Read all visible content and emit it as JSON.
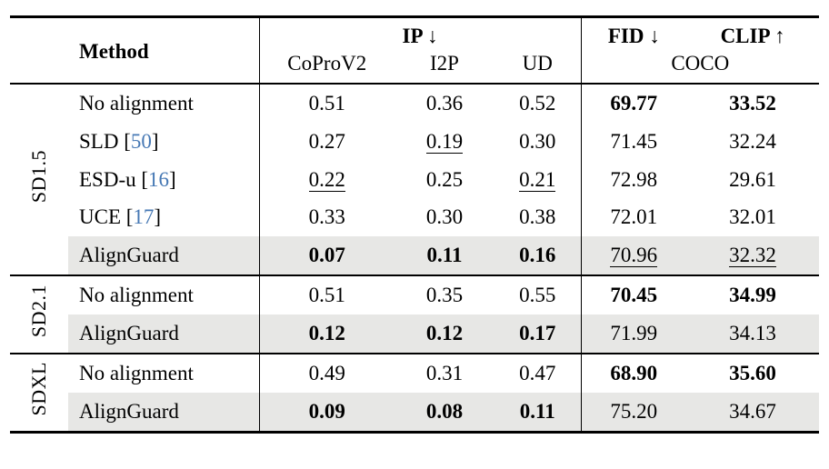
{
  "table": {
    "header": {
      "method": "Method",
      "ip": "IP ↓",
      "ip_cols": [
        "CoProV2",
        "I2P",
        "UD"
      ],
      "fid": "FID ↓",
      "clip": "CLIP ↑",
      "coco": "COCO"
    },
    "highlight_color": "#e7e7e5",
    "cite_color": "#4678b4",
    "groups": [
      {
        "label": "SD1.5",
        "rows": [
          {
            "method": "No alignment",
            "cite": null,
            "highlight": false,
            "cells": [
              {
                "v": "0.51"
              },
              {
                "v": "0.36"
              },
              {
                "v": "0.52"
              },
              {
                "v": "69.77",
                "b": true
              },
              {
                "v": "33.52",
                "b": true
              }
            ]
          },
          {
            "method": "SLD",
            "cite": "50",
            "highlight": false,
            "cells": [
              {
                "v": "0.27"
              },
              {
                "v": "0.19",
                "u": true
              },
              {
                "v": "0.30"
              },
              {
                "v": "71.45"
              },
              {
                "v": "32.24"
              }
            ]
          },
          {
            "method": "ESD-u",
            "cite": "16",
            "highlight": false,
            "cells": [
              {
                "v": "0.22",
                "u": true
              },
              {
                "v": "0.25"
              },
              {
                "v": "0.21",
                "u": true
              },
              {
                "v": "72.98"
              },
              {
                "v": "29.61"
              }
            ]
          },
          {
            "method": "UCE",
            "cite": "17",
            "highlight": false,
            "cells": [
              {
                "v": "0.33"
              },
              {
                "v": "0.30"
              },
              {
                "v": "0.38"
              },
              {
                "v": "72.01"
              },
              {
                "v": "32.01"
              }
            ]
          },
          {
            "method": "AlignGuard",
            "cite": null,
            "highlight": true,
            "cells": [
              {
                "v": "0.07",
                "b": true
              },
              {
                "v": "0.11",
                "b": true
              },
              {
                "v": "0.16",
                "b": true
              },
              {
                "v": "70.96",
                "u": true
              },
              {
                "v": "32.32",
                "u": true
              }
            ]
          }
        ]
      },
      {
        "label": "SD2.1",
        "rows": [
          {
            "method": "No alignment",
            "cite": null,
            "highlight": false,
            "cells": [
              {
                "v": "0.51"
              },
              {
                "v": "0.35"
              },
              {
                "v": "0.55"
              },
              {
                "v": "70.45",
                "b": true
              },
              {
                "v": "34.99",
                "b": true
              }
            ]
          },
          {
            "method": "AlignGuard",
            "cite": null,
            "highlight": true,
            "cells": [
              {
                "v": "0.12",
                "b": true
              },
              {
                "v": "0.12",
                "b": true
              },
              {
                "v": "0.17",
                "b": true
              },
              {
                "v": "71.99"
              },
              {
                "v": "34.13"
              }
            ]
          }
        ]
      },
      {
        "label": "SDXL",
        "rows": [
          {
            "method": "No alignment",
            "cite": null,
            "highlight": false,
            "cells": [
              {
                "v": "0.49"
              },
              {
                "v": "0.31"
              },
              {
                "v": "0.47"
              },
              {
                "v": "68.90",
                "b": true
              },
              {
                "v": "35.60",
                "b": true
              }
            ]
          },
          {
            "method": "AlignGuard",
            "cite": null,
            "highlight": true,
            "cells": [
              {
                "v": "0.09",
                "b": true
              },
              {
                "v": "0.08",
                "b": true
              },
              {
                "v": "0.11",
                "b": true
              },
              {
                "v": "75.20"
              },
              {
                "v": "34.67"
              }
            ]
          }
        ]
      }
    ]
  }
}
